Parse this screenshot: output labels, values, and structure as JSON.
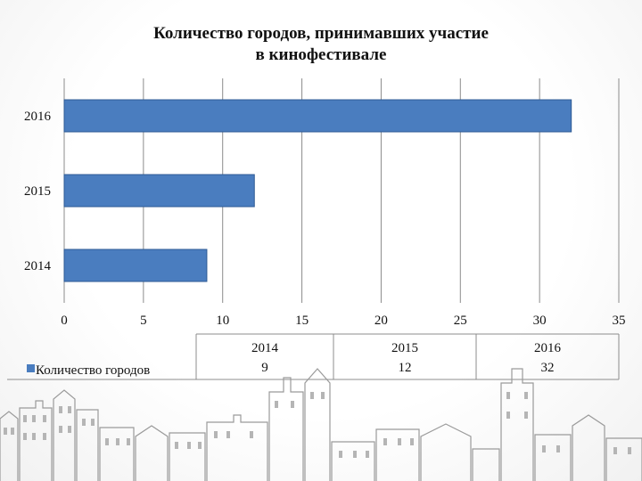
{
  "chart_data": {
    "type": "bar",
    "orientation": "horizontal",
    "title_line1": "Количество городов, принимавших участие",
    "title_line2": "в кинофестивале",
    "categories": [
      "2014",
      "2015",
      "2016"
    ],
    "series": [
      {
        "name": "Количество городов",
        "values": [
          9,
          12,
          32
        ],
        "color": "#4a7dbf"
      }
    ],
    "xlim": [
      0,
      35
    ],
    "xticks": [
      0,
      5,
      10,
      15,
      20,
      25,
      30,
      35
    ],
    "grid": true,
    "data_table": {
      "headers": [
        "2014",
        "2015",
        "2016"
      ],
      "row_label": "Количество городов",
      "values": [
        "9",
        "12",
        "32"
      ]
    }
  },
  "colors": {
    "bar_fill": "#4a7dbf",
    "bar_stroke": "#2e5a94",
    "grid": "#8c8c8c",
    "skyline": "#9a9a9a"
  },
  "decor": {
    "background_icon": "city-skyline-icon"
  }
}
